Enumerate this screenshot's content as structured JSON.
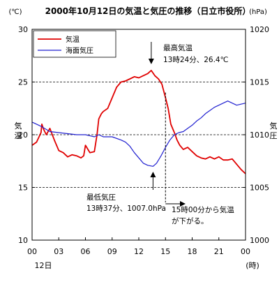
{
  "chart_data": {
    "type": "line",
    "title": "2000年10月12日の気温と気圧の推移（日立市役所）",
    "left_unit": "(℃)",
    "right_unit": "(hPa)",
    "left_axis_label": "気温",
    "right_axis_label": "気圧",
    "x_ticks": [
      "00",
      "03",
      "06",
      "09",
      "12",
      "15",
      "18",
      "21",
      "00"
    ],
    "x_tick_hours": [
      0,
      3,
      6,
      9,
      12,
      15,
      18,
      21,
      24
    ],
    "x_sublabel": "12日",
    "x_unit_label": "(時)",
    "xlim": [
      0,
      24
    ],
    "ylim_left": [
      10,
      30
    ],
    "ylim_right": [
      1000,
      1020
    ],
    "left_ticks": [
      10,
      15,
      20,
      25,
      30
    ],
    "right_ticks": [
      1000,
      1005,
      1010,
      1015,
      1020
    ],
    "grid_y_left": [
      15,
      20,
      25
    ],
    "legend_position": "top-left",
    "series": [
      {
        "name": "気温",
        "axis": "left",
        "color": "#e00000",
        "x": [
          0,
          0.5,
          1.0,
          1.1,
          1.3,
          1.6,
          2.0,
          2.5,
          3.0,
          3.5,
          4.0,
          4.5,
          5.0,
          5.5,
          5.8,
          6.0,
          6.5,
          7.0,
          7.3,
          7.5,
          7.8,
          8.0,
          8.5,
          9.0,
          9.5,
          10.0,
          10.5,
          11.0,
          11.5,
          12.0,
          12.5,
          13.0,
          13.4,
          13.8,
          14.2,
          14.6,
          15.0,
          15.3,
          15.6,
          16.0,
          16.3,
          16.6,
          17.0,
          17.5,
          18.0,
          18.5,
          19.0,
          19.5,
          20.0,
          20.5,
          21.0,
          21.5,
          22.0,
          22.5,
          23.0,
          23.5,
          24.0
        ],
        "y": [
          19.0,
          19.3,
          20.2,
          21.0,
          20.5,
          20.0,
          20.6,
          19.5,
          18.5,
          18.3,
          17.9,
          18.1,
          18.0,
          17.8,
          18.0,
          19.0,
          18.3,
          18.4,
          20.0,
          21.5,
          22.0,
          22.2,
          22.5,
          23.5,
          24.5,
          25.0,
          25.1,
          25.3,
          25.5,
          25.4,
          25.6,
          25.8,
          26.1,
          25.6,
          25.3,
          24.8,
          23.5,
          22.5,
          21.0,
          20.2,
          19.5,
          19.0,
          18.6,
          18.8,
          18.4,
          18.0,
          17.8,
          17.7,
          17.9,
          17.7,
          17.9,
          17.6,
          17.6,
          17.7,
          17.2,
          16.7,
          16.3
        ]
      },
      {
        "name": "海面気圧",
        "axis": "right",
        "color": "#2020d0",
        "x": [
          0,
          1,
          2,
          3,
          4,
          5,
          6,
          7,
          7.5,
          8,
          9,
          10,
          10.5,
          11,
          11.5,
          12,
          12.5,
          13,
          13.6,
          14,
          14.5,
          15,
          15.5,
          16,
          16.5,
          17,
          17.5,
          18,
          18.5,
          19,
          19.5,
          20,
          20.5,
          21,
          21.5,
          22,
          22.5,
          23,
          23.5,
          24
        ],
        "y": [
          1011.2,
          1010.8,
          1010.3,
          1010.2,
          1010.1,
          1010.0,
          1010.0,
          1009.8,
          1010.0,
          1009.8,
          1009.8,
          1009.5,
          1009.3,
          1008.9,
          1008.3,
          1007.8,
          1007.3,
          1007.1,
          1007.0,
          1007.3,
          1008.0,
          1008.8,
          1009.5,
          1010.0,
          1010.2,
          1010.3,
          1010.6,
          1010.9,
          1011.3,
          1011.6,
          1012.0,
          1012.3,
          1012.6,
          1012.8,
          1013.0,
          1013.2,
          1013.0,
          1012.8,
          1012.9,
          1013.0
        ]
      }
    ],
    "annotations": [
      {
        "lines": [
          "最高気温",
          "13時24分、26.4℃"
        ]
      },
      {
        "lines": [
          "最低気圧",
          "13時37分、1007.0hPa"
        ]
      },
      {
        "lines": [
          "15時00分から気温",
          "が下がる。"
        ]
      }
    ]
  }
}
